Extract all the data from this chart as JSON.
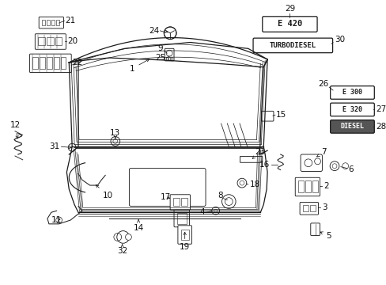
{
  "bg_color": "#ffffff",
  "line_color": "#1a1a1a",
  "figsize": [
    4.89,
    3.6
  ],
  "dpi": 100,
  "badges": {
    "29": "E 420",
    "30": "TURBODIESEL",
    "26": "E 300",
    "27": "E 320",
    "28": "DIESEL"
  }
}
